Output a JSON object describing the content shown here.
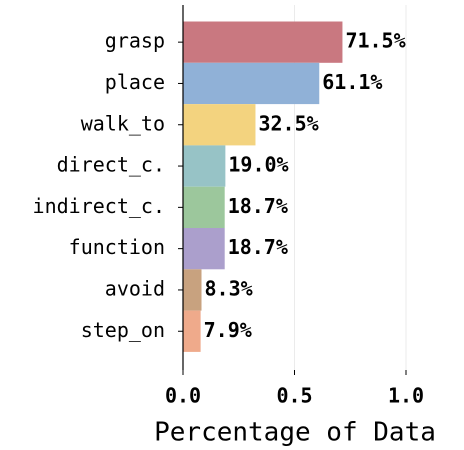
{
  "chart_data": {
    "type": "barh",
    "xlabel": "Percentage of Data",
    "categories": [
      "grasp",
      "place",
      "walk_to",
      "direct_c.",
      "indirect_c.",
      "function",
      "avoid",
      "step_on"
    ],
    "values": [
      0.715,
      0.611,
      0.325,
      0.19,
      0.187,
      0.187,
      0.083,
      0.079
    ],
    "value_labels": [
      "71.5%",
      "61.1%",
      "32.5%",
      "19.0%",
      "18.7%",
      "18.7%",
      "8.3%",
      "7.9%"
    ],
    "colors": [
      "#c97880",
      "#90b1d7",
      "#f3d37f",
      "#97c3c6",
      "#9cc79c",
      "#ab9fcc",
      "#c8a27f",
      "#efaa8b"
    ],
    "xlim": [
      0,
      1.0
    ],
    "xticks": [
      {
        "value": 0,
        "label": "0.0"
      },
      0.5,
      {
        "value": 1,
        "label": "1.0"
      }
    ],
    "grid": true
  }
}
